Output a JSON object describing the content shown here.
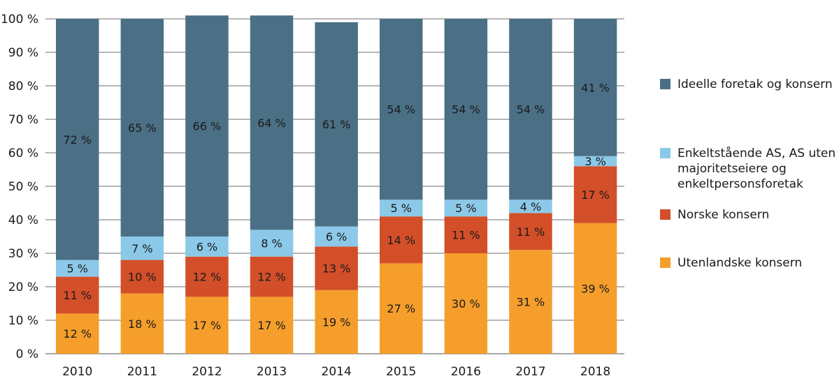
{
  "chart_data": {
    "type": "bar",
    "stacked": true,
    "title": "",
    "xlabel": "",
    "ylabel": "",
    "ylim": [
      0,
      100
    ],
    "y_ticks": [
      "0 %",
      "10 %",
      "20 %",
      "30 %",
      "40 %",
      "50 %",
      "60 %",
      "70 %",
      "80 %",
      "90 %",
      "100 %"
    ],
    "grid": true,
    "legend_position": "right",
    "categories": [
      "2010",
      "2011",
      "2012",
      "2013",
      "2014",
      "2015",
      "2016",
      "2017",
      "2018"
    ],
    "series": [
      {
        "name": "Utenlandske konsern",
        "color": "#f59e2c",
        "values": [
          12,
          18,
          17,
          17,
          19,
          27,
          30,
          31,
          39
        ]
      },
      {
        "name": "Norske konsern",
        "color": "#d34f29",
        "values": [
          11,
          10,
          12,
          12,
          13,
          14,
          11,
          11,
          17
        ]
      },
      {
        "name": "Enkeltstående AS, AS uten majoritetseiere og enkeltpersonsforetak",
        "color": "#8cc8e8",
        "values": [
          5,
          7,
          6,
          8,
          6,
          5,
          5,
          4,
          3
        ]
      },
      {
        "name": "Ideelle foretak og konsern",
        "color": "#4b7086",
        "values": [
          72,
          65,
          66,
          64,
          61,
          54,
          54,
          54,
          41
        ]
      }
    ],
    "legend": [
      {
        "lines": [
          "Ideelle foretak og konsern"
        ],
        "color": "#4b7086"
      },
      {
        "lines": [
          "Enkeltstående AS, AS uten",
          "majoritetseiere og",
          "enkeltpersonsforetak"
        ],
        "color": "#8cc8e8"
      },
      {
        "lines": [
          "Norske konsern"
        ],
        "color": "#d34f29"
      },
      {
        "lines": [
          "Utenlandske konsern"
        ],
        "color": "#f59e2c"
      }
    ],
    "value_suffix": " %"
  }
}
